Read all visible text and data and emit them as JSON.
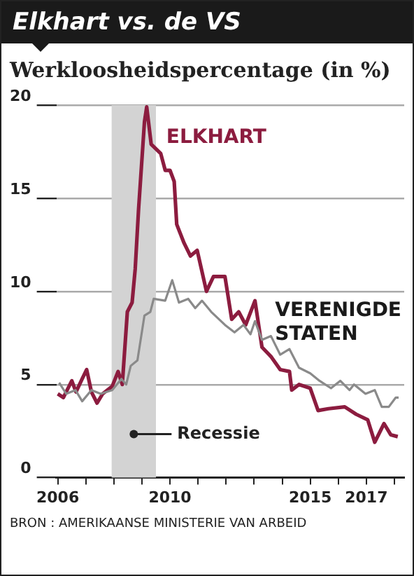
{
  "chart_data": {
    "type": "line",
    "title": "Elkhart vs. de VS",
    "subtitle": "Werkloosheidspercentage (in %)",
    "annotations": [
      "BRON : AMERIKAANSE MINISTERIE VAN ARBEID"
    ],
    "series": [
      {
        "name": "ELKHART",
        "color": "#8c1c3f",
        "x": [
          2006.0,
          2006.2,
          2006.5,
          2006.65,
          2006.87,
          2007.03,
          2007.2,
          2007.4,
          2007.6,
          2007.94,
          2008.15,
          2008.3,
          2008.48,
          2008.65,
          2008.76,
          2008.88,
          2009.09,
          2009.17,
          2009.33,
          2009.67,
          2009.83,
          2010.0,
          2010.15,
          2010.24,
          2010.5,
          2010.73,
          2010.97,
          2011.3,
          2011.55,
          2011.96,
          2012.2,
          2012.45,
          2012.7,
          2013.03,
          2013.28,
          2013.6,
          2013.93,
          2014.26,
          2014.34,
          2014.6,
          2015.0,
          2015.28,
          2015.65,
          2016.23,
          2016.64,
          2017.05,
          2017.3,
          2017.63,
          2017.87,
          2018.12
        ],
        "values": [
          4.5,
          4.3,
          5.2,
          4.6,
          5.3,
          5.8,
          4.6,
          4,
          4.5,
          4.9,
          5.7,
          5,
          8.9,
          9.4,
          11.2,
          14.4,
          19.1,
          19.9,
          17.9,
          17.4,
          16.5,
          16.5,
          15.9,
          13.6,
          12.6,
          11.9,
          12.2,
          10,
          10.8,
          10.8,
          8.5,
          8.9,
          8.2,
          9.5,
          7,
          6.5,
          5.8,
          5.7,
          4.7,
          5,
          4.8,
          3.6,
          3.7,
          3.8,
          3.4,
          3.1,
          1.9,
          2.9,
          2.3,
          2.2
        ]
      },
      {
        "name": "VERENIGDE STATEN",
        "color": "#8a8a8a",
        "x": [
          2006.05,
          2006.3,
          2006.63,
          2006.87,
          2007.2,
          2007.53,
          2007.94,
          2008.27,
          2008.44,
          2008.6,
          2008.84,
          2009.09,
          2009.3,
          2009.42,
          2009.83,
          2010.08,
          2010.32,
          2010.65,
          2010.9,
          2011.14,
          2011.47,
          2011.96,
          2012.3,
          2012.62,
          2012.87,
          2013.03,
          2013.28,
          2013.6,
          2013.93,
          2014.26,
          2014.6,
          2015.0,
          2015.33,
          2015.74,
          2016.07,
          2016.4,
          2016.56,
          2016.97,
          2017.3,
          2017.55,
          2017.8,
          2018.05,
          2018.15
        ],
        "values": [
          5.1,
          4.5,
          4.7,
          4.1,
          4.7,
          4.5,
          4.7,
          5.3,
          5,
          6,
          6.3,
          8.7,
          8.9,
          9.6,
          9.5,
          10.6,
          9.4,
          9.6,
          9.1,
          9.5,
          8.9,
          8.2,
          7.8,
          8.2,
          7.7,
          8.4,
          7.4,
          7.6,
          6.6,
          6.9,
          5.9,
          5.6,
          5.2,
          4.8,
          5.2,
          4.7,
          5,
          4.5,
          4.7,
          3.8,
          3.8,
          4.3,
          4.3
        ]
      }
    ],
    "xlim": [
      2005.95,
      2018.35
    ],
    "xticks": [
      {
        "value": 2006,
        "label": "2006"
      },
      {
        "value": 2007,
        "label": null
      },
      {
        "value": 2008,
        "label": null
      },
      {
        "value": 2009,
        "label": null
      },
      {
        "value": 2010,
        "label": "2010"
      },
      {
        "value": 2011,
        "label": null
      },
      {
        "value": 2012,
        "label": null
      },
      {
        "value": 2013,
        "label": null
      },
      {
        "value": 2014,
        "label": null
      },
      {
        "value": 2015,
        "label": "2015"
      },
      {
        "value": 2016,
        "label": null
      },
      {
        "value": 2017,
        "label": "2017"
      },
      {
        "value": 2018,
        "label": null
      }
    ],
    "ylim": [
      0,
      20
    ],
    "yticks": [
      0,
      5,
      10,
      15,
      20
    ],
    "grid": "y",
    "legend": false,
    "marker": "none",
    "line_style": "solid",
    "bands": [
      {
        "axis": "x",
        "from": 2007.92,
        "to": 2009.5,
        "label": "Recessie",
        "color": "#d3d3d3"
      }
    ]
  }
}
